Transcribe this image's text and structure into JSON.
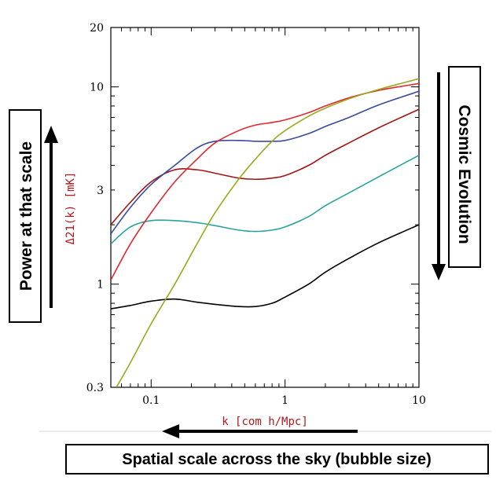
{
  "chart_data": {
    "type": "line",
    "xscale": "log",
    "yscale": "log",
    "xlim": [
      0.05,
      10
    ],
    "ylim": [
      0.3,
      20
    ],
    "xticks": [
      {
        "value": 0.1,
        "label": "0.1"
      },
      {
        "value": 1,
        "label": "1"
      },
      {
        "value": 10,
        "label": "10"
      }
    ],
    "yticks": [
      {
        "value": 0.3,
        "label": "0.3"
      },
      {
        "value": 1,
        "label": "1"
      },
      {
        "value": 3,
        "label": "3"
      },
      {
        "value": 10,
        "label": "10"
      },
      {
        "value": 20,
        "label": "20"
      }
    ],
    "xlabel": "k [com h/Mpc]",
    "ylabel": "Δ21(k) [mK]",
    "series": [
      {
        "color": "#000000",
        "x": [
          0.05,
          0.07,
          0.1,
          0.15,
          0.22,
          0.3,
          0.45,
          0.6,
          0.8,
          1,
          1.5,
          2,
          3,
          5,
          10
        ],
        "values": [
          0.75,
          0.78,
          0.82,
          0.84,
          0.81,
          0.79,
          0.77,
          0.77,
          0.8,
          0.86,
          1.0,
          1.15,
          1.35,
          1.62,
          2.0
        ]
      },
      {
        "color": "#2aa3a0",
        "x": [
          0.05,
          0.07,
          0.1,
          0.15,
          0.22,
          0.3,
          0.45,
          0.6,
          0.8,
          1,
          1.5,
          2,
          3,
          5,
          10
        ],
        "values": [
          1.6,
          1.95,
          2.1,
          2.1,
          2.05,
          1.98,
          1.88,
          1.85,
          1.88,
          1.95,
          2.2,
          2.5,
          2.9,
          3.5,
          4.5
        ]
      },
      {
        "color": "#a31515",
        "x": [
          0.05,
          0.07,
          0.1,
          0.15,
          0.22,
          0.3,
          0.45,
          0.6,
          0.8,
          1,
          1.5,
          2,
          3,
          5,
          10
        ],
        "values": [
          2.0,
          2.6,
          3.3,
          3.8,
          3.8,
          3.65,
          3.45,
          3.4,
          3.45,
          3.55,
          4.0,
          4.5,
          5.2,
          6.2,
          7.7
        ]
      },
      {
        "color": "#3b4a9c",
        "x": [
          0.05,
          0.07,
          0.1,
          0.15,
          0.22,
          0.3,
          0.45,
          0.6,
          0.8,
          1,
          1.5,
          2,
          3,
          5,
          10
        ],
        "values": [
          1.8,
          2.45,
          3.2,
          4.0,
          4.9,
          5.3,
          5.35,
          5.3,
          5.3,
          5.35,
          5.8,
          6.3,
          7.0,
          8.1,
          9.5
        ]
      },
      {
        "color": "#e0282d",
        "x": [
          0.05,
          0.07,
          0.1,
          0.15,
          0.22,
          0.3,
          0.45,
          0.6,
          0.8,
          1,
          1.5,
          2,
          3,
          5,
          10
        ],
        "values": [
          1.05,
          1.6,
          2.3,
          3.3,
          4.3,
          5.2,
          6.0,
          6.4,
          6.6,
          6.8,
          7.4,
          8.0,
          8.8,
          9.6,
          10.4
        ]
      },
      {
        "color": "#9aaa1e",
        "x": [
          0.055,
          0.07,
          0.1,
          0.15,
          0.22,
          0.3,
          0.45,
          0.6,
          0.8,
          1,
          1.5,
          2,
          3,
          5,
          10
        ],
        "values": [
          0.3,
          0.4,
          0.63,
          1.0,
          1.6,
          2.3,
          3.4,
          4.3,
          5.3,
          6.0,
          7.1,
          7.8,
          8.7,
          9.7,
          11.0
        ]
      }
    ],
    "grid": false,
    "legend": "none"
  },
  "annotations": {
    "left_label": "Power at that scale",
    "right_label": "Cosmic Evolution",
    "bottom_label": "Spatial scale across the sky (bubble size)"
  }
}
